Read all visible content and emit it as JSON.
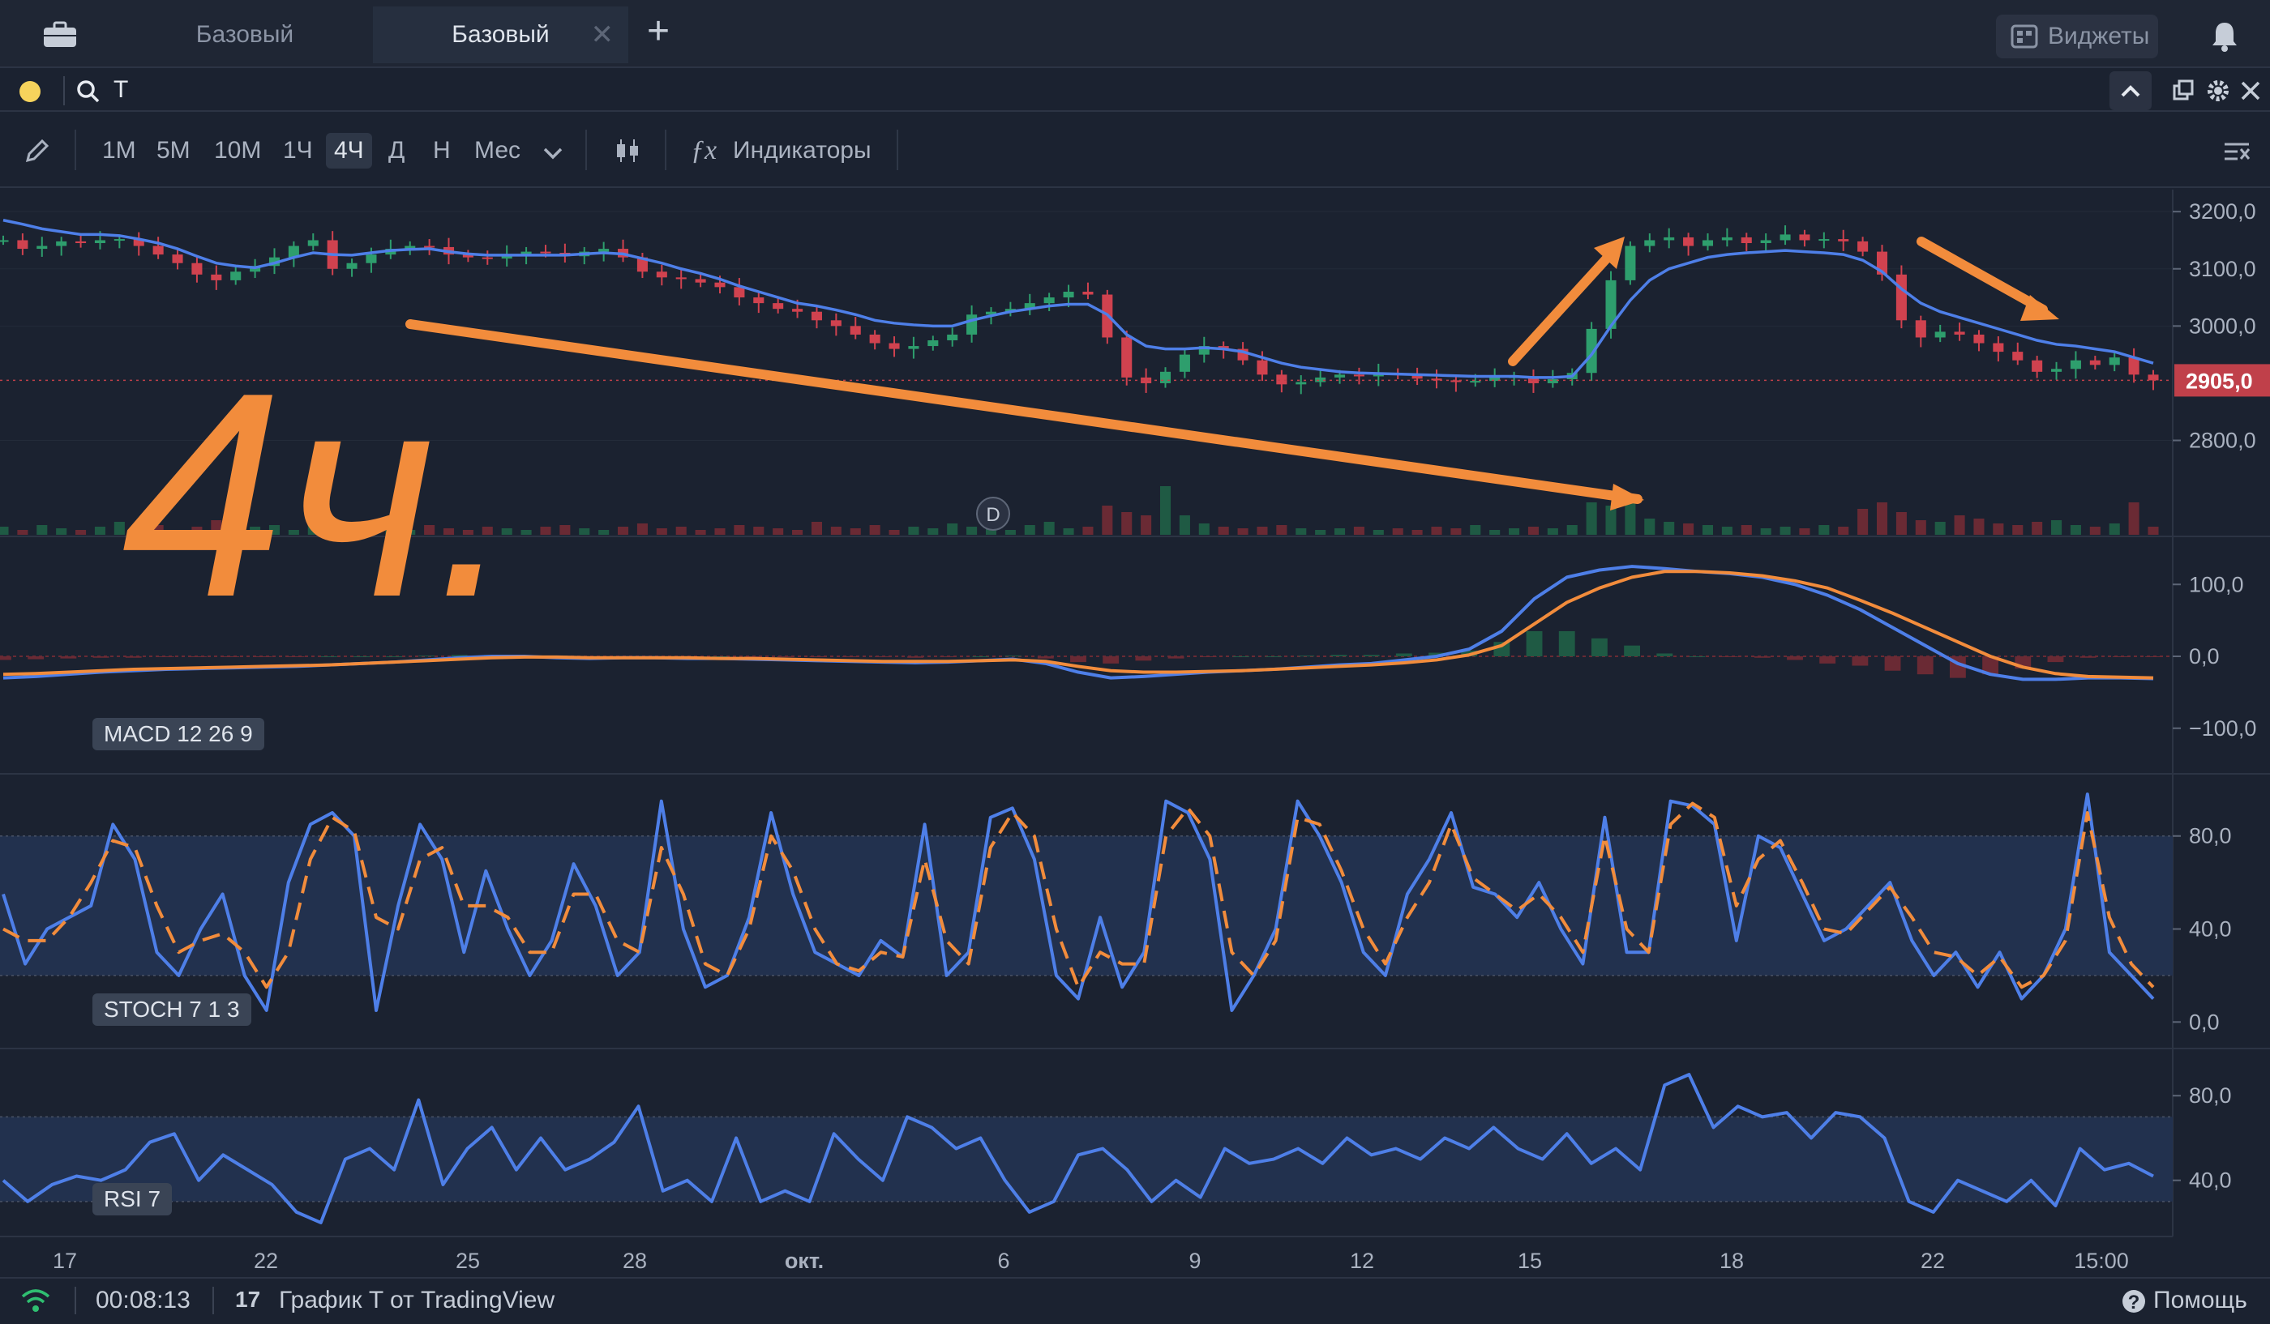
{
  "tabs": [
    {
      "label": "Базовый"
    },
    {
      "label": "Базовый"
    }
  ],
  "header": {
    "widgets_label": "Виджеты"
  },
  "search": {
    "ticker": "T"
  },
  "timeframes": [
    "1М",
    "5М",
    "10М",
    "1Ч",
    "4Ч",
    "Д",
    "Н",
    "Мес"
  ],
  "selected_timeframe": "4Ч",
  "indicators_label": "Индикаторы",
  "status": {
    "timer": "00:08:13",
    "source": "График T от TradingView",
    "help": "Помощь"
  },
  "annotation": {
    "handwritten": "4ч."
  },
  "colors": {
    "up": "#2e9e6d",
    "down": "#d0424f",
    "ma": "#4e7fe8",
    "orange": "#f28c3c",
    "price_tag": "#c0404a"
  },
  "chart_data": [
    {
      "type": "candlestick",
      "title": "",
      "ylim": [
        2720,
        3230
      ],
      "y_ticks": [
        "3200,0",
        "3100,0",
        "3000,0",
        "2800,0"
      ],
      "y_tick_values": [
        3200,
        3100,
        3000,
        2800
      ],
      "current_price_label": "2905,0",
      "current_price": 2905,
      "x_ticks": [
        "17",
        "22",
        "25",
        "28",
        "окт.",
        "6",
        "9",
        "12",
        "15",
        "18",
        "22",
        "15:00"
      ],
      "marker": "D",
      "close_series": [
        3150,
        3135,
        3140,
        3148,
        3145,
        3150,
        3152,
        3140,
        3125,
        3110,
        3090,
        3080,
        3095,
        3105,
        3120,
        3140,
        3150,
        3100,
        3110,
        3125,
        3135,
        3140,
        3138,
        3125,
        3120,
        3118,
        3125,
        3130,
        3128,
        3122,
        3130,
        3135,
        3120,
        3095,
        3085,
        3082,
        3076,
        3068,
        3050,
        3040,
        3030,
        3025,
        3010,
        3000,
        2985,
        2970,
        2960,
        2965,
        2975,
        2985,
        3020,
        3025,
        3030,
        3040,
        3050,
        3060,
        3055,
        2980,
        2910,
        2900,
        2920,
        2950,
        2965,
        2960,
        2940,
        2915,
        2898,
        2902,
        2910,
        2915,
        2912,
        2918,
        2915,
        2908,
        2905,
        2902,
        2904,
        2910,
        2912,
        2900,
        2907,
        2918,
        2995,
        3080,
        3140,
        3150,
        3155,
        3140,
        3150,
        3155,
        3145,
        3150,
        3160,
        3150,
        3152,
        3148,
        3130,
        3090,
        3010,
        2980,
        2990,
        2985,
        2970,
        2955,
        2940,
        2920,
        2925,
        2940,
        2932,
        2945,
        2915,
        2905
      ],
      "ma_series": [
        3185,
        3178,
        3170,
        3165,
        3160,
        3160,
        3158,
        3152,
        3145,
        3135,
        3122,
        3110,
        3105,
        3102,
        3110,
        3120,
        3128,
        3125,
        3124,
        3128,
        3132,
        3134,
        3135,
        3130,
        3126,
        3124,
        3124,
        3124,
        3124,
        3124,
        3126,
        3128,
        3126,
        3118,
        3110,
        3100,
        3092,
        3082,
        3070,
        3060,
        3050,
        3040,
        3035,
        3028,
        3020,
        3010,
        3005,
        3002,
        3000,
        3000,
        3010,
        3018,
        3025,
        3030,
        3035,
        3038,
        3038,
        3020,
        2985,
        2965,
        2960,
        2960,
        2962,
        2960,
        2955,
        2945,
        2935,
        2928,
        2924,
        2920,
        2918,
        2917,
        2916,
        2915,
        2914,
        2913,
        2912,
        2912,
        2912,
        2910,
        2910,
        2912,
        2950,
        3000,
        3045,
        3080,
        3100,
        3110,
        3120,
        3125,
        3128,
        3130,
        3132,
        3130,
        3128,
        3125,
        3115,
        3095,
        3065,
        3040,
        3025,
        3015,
        3005,
        2995,
        2985,
        2975,
        2968,
        2965,
        2960,
        2955,
        2945,
        2935
      ],
      "volume_series": [
        5,
        3,
        6,
        4,
        3,
        5,
        8,
        4,
        6,
        3,
        5,
        9,
        4,
        5,
        6,
        3,
        7,
        5,
        4,
        4,
        5,
        3,
        6,
        4,
        3,
        5,
        4,
        3,
        5,
        6,
        4,
        3,
        5,
        7,
        4,
        5,
        3,
        4,
        6,
        5,
        4,
        3,
        8,
        5,
        4,
        6,
        3,
        5,
        4,
        7,
        5,
        4,
        3,
        6,
        8,
        4,
        5,
        18,
        14,
        12,
        30,
        12,
        7,
        5,
        4,
        5,
        6,
        4,
        3,
        4,
        5,
        3,
        4,
        3,
        5,
        4,
        6,
        3,
        4,
        5,
        4,
        6,
        20,
        18,
        22,
        10,
        8,
        7,
        6,
        5,
        6,
        4,
        5,
        4,
        6,
        5,
        16,
        20,
        14,
        9,
        8,
        12,
        10,
        7,
        6,
        8,
        9,
        6,
        5,
        7,
        20,
        5
      ]
    },
    {
      "type": "line",
      "title": "MACD 12 26 9",
      "ylim": [
        -160,
        160
      ],
      "y_ticks": [
        "100,0",
        "0,0",
        "−100,0"
      ],
      "y_tick_values": [
        100,
        0,
        -100
      ],
      "series": [
        {
          "name": "MACD",
          "values": [
            -30,
            -28,
            -25,
            -22,
            -20,
            -18,
            -17,
            -16,
            -15,
            -14,
            -12,
            -10,
            -8,
            -5,
            -2,
            0,
            0,
            -2,
            -3,
            -2,
            -2,
            -3,
            -3,
            -4,
            -5,
            -6,
            -7,
            -8,
            -9,
            -8,
            -6,
            -4,
            -10,
            -22,
            -30,
            -28,
            -25,
            -22,
            -20,
            -18,
            -15,
            -12,
            -10,
            -5,
            0,
            10,
            35,
            80,
            110,
            120,
            125,
            122,
            118,
            115,
            110,
            100,
            85,
            65,
            40,
            15,
            -10,
            -25,
            -32,
            -32,
            -30,
            -30,
            -31
          ]
        },
        {
          "name": "Signal",
          "values": [
            -25,
            -24,
            -22,
            -20,
            -18,
            -17,
            -16,
            -15,
            -14,
            -13,
            -12,
            -10,
            -8,
            -6,
            -4,
            -2,
            -1,
            -1,
            -2,
            -2,
            -2,
            -2,
            -3,
            -3,
            -4,
            -5,
            -6,
            -7,
            -7,
            -7,
            -6,
            -5,
            -7,
            -14,
            -20,
            -22,
            -22,
            -21,
            -20,
            -18,
            -16,
            -14,
            -12,
            -9,
            -5,
            2,
            15,
            45,
            75,
            95,
            110,
            118,
            118,
            116,
            112,
            105,
            95,
            78,
            60,
            40,
            20,
            0,
            -15,
            -24,
            -28,
            -29,
            -30
          ]
        }
      ]
    },
    {
      "type": "line",
      "title": "STOCH 7 1 3",
      "ylim": [
        -10,
        105
      ],
      "y_ticks": [
        "80,0",
        "40,0",
        "0,0"
      ],
      "y_tick_values": [
        80,
        40,
        0
      ],
      "band": [
        20,
        80
      ],
      "series": [
        {
          "name": "%K",
          "values": [
            55,
            25,
            40,
            45,
            50,
            85,
            70,
            30,
            20,
            40,
            55,
            20,
            5,
            60,
            85,
            90,
            80,
            5,
            50,
            85,
            70,
            30,
            65,
            40,
            20,
            35,
            68,
            50,
            20,
            30,
            95,
            40,
            15,
            20,
            45,
            90,
            55,
            30,
            25,
            20,
            35,
            28,
            85,
            20,
            30,
            88,
            92,
            70,
            20,
            10,
            45,
            15,
            30,
            95,
            90,
            70,
            5,
            20,
            40,
            95,
            80,
            60,
            30,
            20,
            55,
            70,
            90,
            58,
            55,
            45,
            60,
            40,
            25,
            88,
            30,
            30,
            95,
            93,
            85,
            35,
            80,
            75,
            55,
            35,
            40,
            50,
            60,
            35,
            20,
            30,
            15,
            30,
            10,
            20,
            40,
            98,
            30,
            20,
            10
          ]
        },
        {
          "name": "%D",
          "values": [
            40,
            35,
            35,
            45,
            60,
            78,
            75,
            50,
            30,
            35,
            38,
            30,
            15,
            30,
            70,
            88,
            82,
            45,
            40,
            70,
            75,
            50,
            50,
            45,
            30,
            30,
            55,
            55,
            35,
            30,
            75,
            55,
            25,
            20,
            40,
            80,
            65,
            40,
            25,
            22,
            30,
            28,
            70,
            35,
            25,
            75,
            90,
            80,
            40,
            15,
            30,
            25,
            25,
            80,
            92,
            80,
            30,
            20,
            35,
            88,
            85,
            65,
            40,
            25,
            45,
            60,
            85,
            62,
            55,
            48,
            55,
            45,
            30,
            80,
            40,
            30,
            85,
            94,
            88,
            50,
            70,
            78,
            60,
            40,
            38,
            48,
            58,
            45,
            30,
            28,
            20,
            28,
            15,
            20,
            35,
            90,
            45,
            25,
            15
          ]
        }
      ]
    },
    {
      "type": "line",
      "title": "RSI 7",
      "ylim": [
        15,
        100
      ],
      "y_ticks": [
        "80,0",
        "40,0"
      ],
      "y_tick_values": [
        80,
        40
      ],
      "band": [
        30,
        70
      ],
      "series": [
        {
          "name": "RSI",
          "values": [
            40,
            30,
            38,
            42,
            40,
            45,
            58,
            62,
            40,
            52,
            45,
            38,
            25,
            20,
            50,
            55,
            45,
            78,
            38,
            55,
            65,
            45,
            60,
            45,
            50,
            58,
            75,
            35,
            40,
            30,
            60,
            30,
            35,
            30,
            62,
            50,
            40,
            70,
            65,
            55,
            60,
            40,
            25,
            30,
            52,
            55,
            45,
            30,
            40,
            32,
            55,
            48,
            50,
            55,
            48,
            60,
            52,
            55,
            50,
            60,
            55,
            65,
            55,
            50,
            62,
            48,
            55,
            45,
            85,
            90,
            65,
            75,
            70,
            72,
            60,
            72,
            70,
            60,
            30,
            25,
            40,
            35,
            30,
            40,
            28,
            55,
            45,
            48,
            42
          ]
        }
      ]
    }
  ]
}
